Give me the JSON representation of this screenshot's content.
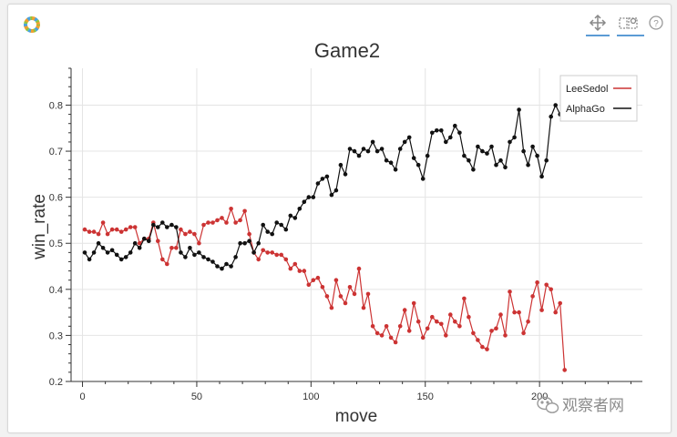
{
  "toolbar": {
    "logo_icon": "bokeh-logo-icon",
    "pan_icon": "pan-move-icon",
    "box_zoom_icon": "box-zoom-icon",
    "help_icon": "help-icon"
  },
  "watermark": {
    "text": "观察者网",
    "icon": "wechat-icon"
  },
  "chart_data": {
    "type": "line",
    "title": "Game2",
    "xlabel": "move",
    "ylabel": "win_rate",
    "xlim": [
      -5,
      245
    ],
    "ylim": [
      0.2,
      0.88
    ],
    "xticks": [
      0,
      50,
      100,
      150,
      200
    ],
    "yticks": [
      0.2,
      0.3,
      0.4,
      0.5,
      0.6,
      0.7,
      0.8
    ],
    "grid": true,
    "legend_position": "top-right",
    "series": [
      {
        "name": "LeeSedol",
        "color": "#cc3333",
        "x": [
          1,
          3,
          5,
          7,
          9,
          11,
          13,
          15,
          17,
          19,
          21,
          23,
          25,
          27,
          29,
          31,
          33,
          35,
          37,
          39,
          41,
          43,
          45,
          47,
          49,
          51,
          53,
          55,
          57,
          59,
          61,
          63,
          65,
          67,
          69,
          71,
          73,
          75,
          77,
          79,
          81,
          83,
          85,
          87,
          89,
          91,
          93,
          95,
          97,
          99,
          101,
          103,
          105,
          107,
          109,
          111,
          113,
          115,
          117,
          119,
          121,
          123,
          125,
          127,
          129,
          131,
          133,
          135,
          137,
          139,
          141,
          143,
          145,
          147,
          149,
          151,
          153,
          155,
          157,
          159,
          161,
          163,
          165,
          167,
          169,
          171,
          173,
          175,
          177,
          179,
          181,
          183,
          185,
          187,
          189,
          191,
          193,
          195,
          197,
          199,
          201,
          203,
          205,
          207,
          209,
          211
        ],
        "y": [
          0.53,
          0.525,
          0.525,
          0.52,
          0.545,
          0.52,
          0.53,
          0.53,
          0.525,
          0.53,
          0.535,
          0.535,
          0.5,
          0.51,
          0.51,
          0.545,
          0.505,
          0.465,
          0.455,
          0.49,
          0.49,
          0.53,
          0.52,
          0.525,
          0.52,
          0.5,
          0.54,
          0.545,
          0.545,
          0.55,
          0.555,
          0.545,
          0.575,
          0.545,
          0.55,
          0.57,
          0.52,
          0.48,
          0.465,
          0.485,
          0.48,
          0.48,
          0.475,
          0.475,
          0.465,
          0.445,
          0.455,
          0.44,
          0.44,
          0.41,
          0.42,
          0.425,
          0.405,
          0.385,
          0.36,
          0.42,
          0.385,
          0.37,
          0.405,
          0.39,
          0.445,
          0.36,
          0.39,
          0.32,
          0.305,
          0.3,
          0.32,
          0.295,
          0.285,
          0.32,
          0.355,
          0.31,
          0.37,
          0.33,
          0.295,
          0.315,
          0.34,
          0.33,
          0.325,
          0.3,
          0.345,
          0.33,
          0.32,
          0.38,
          0.34,
          0.305,
          0.29,
          0.275,
          0.27,
          0.31,
          0.315,
          0.345,
          0.3,
          0.395,
          0.35,
          0.35,
          0.305,
          0.33,
          0.385,
          0.415,
          0.355,
          0.41,
          0.4,
          0.35,
          0.37,
          0.225
        ]
      },
      {
        "name": "AlphaGo",
        "color": "#111111",
        "x": [
          1,
          3,
          5,
          7,
          9,
          11,
          13,
          15,
          17,
          19,
          21,
          23,
          25,
          27,
          29,
          31,
          33,
          35,
          37,
          39,
          41,
          43,
          45,
          47,
          49,
          51,
          53,
          55,
          57,
          59,
          61,
          63,
          65,
          67,
          69,
          71,
          73,
          75,
          77,
          79,
          81,
          83,
          85,
          87,
          89,
          91,
          93,
          95,
          97,
          99,
          101,
          103,
          105,
          107,
          109,
          111,
          113,
          115,
          117,
          119,
          121,
          123,
          125,
          127,
          129,
          131,
          133,
          135,
          137,
          139,
          141,
          143,
          145,
          147,
          149,
          151,
          153,
          155,
          157,
          159,
          161,
          163,
          165,
          167,
          169,
          171,
          173,
          175,
          177,
          179,
          181,
          183,
          185,
          187,
          189,
          191,
          193,
          195,
          197,
          199,
          201,
          203,
          205,
          207,
          209,
          211
        ],
        "y": [
          0.48,
          0.465,
          0.48,
          0.5,
          0.49,
          0.48,
          0.485,
          0.475,
          0.465,
          0.47,
          0.48,
          0.5,
          0.49,
          0.51,
          0.505,
          0.54,
          0.535,
          0.545,
          0.535,
          0.54,
          0.535,
          0.48,
          0.47,
          0.49,
          0.475,
          0.48,
          0.47,
          0.465,
          0.46,
          0.45,
          0.445,
          0.455,
          0.45,
          0.47,
          0.5,
          0.5,
          0.505,
          0.48,
          0.5,
          0.54,
          0.525,
          0.52,
          0.545,
          0.54,
          0.53,
          0.56,
          0.555,
          0.575,
          0.59,
          0.6,
          0.6,
          0.63,
          0.64,
          0.645,
          0.605,
          0.615,
          0.67,
          0.65,
          0.705,
          0.7,
          0.69,
          0.705,
          0.7,
          0.72,
          0.7,
          0.705,
          0.68,
          0.675,
          0.66,
          0.705,
          0.72,
          0.73,
          0.685,
          0.67,
          0.64,
          0.69,
          0.74,
          0.745,
          0.745,
          0.72,
          0.73,
          0.755,
          0.74,
          0.69,
          0.68,
          0.66,
          0.71,
          0.7,
          0.695,
          0.71,
          0.67,
          0.68,
          0.665,
          0.72,
          0.73,
          0.79,
          0.7,
          0.67,
          0.71,
          0.69,
          0.645,
          0.68,
          0.775,
          0.8,
          0.78,
          0.775
        ]
      }
    ]
  }
}
